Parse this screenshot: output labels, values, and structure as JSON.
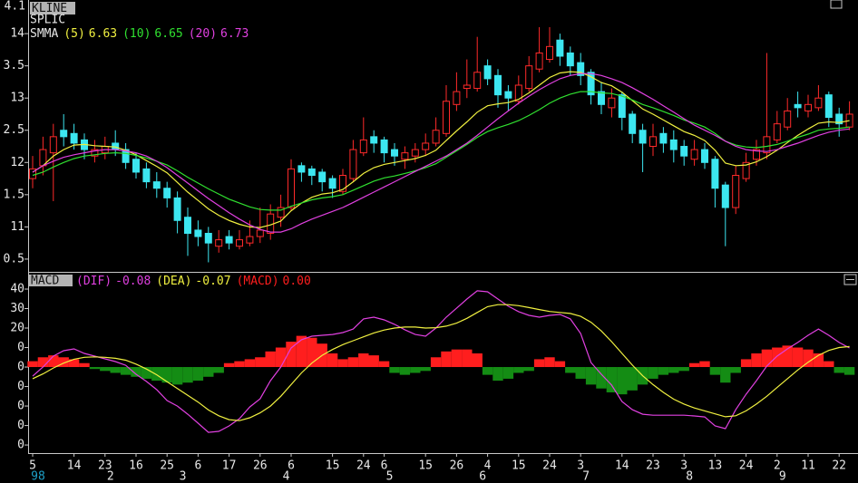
{
  "chart_data": [
    {
      "type": "candlestick",
      "badge": "KLINE",
      "title": "SPLIC",
      "top_label": "4.1",
      "open": [
        11.75,
        11.95,
        12.15,
        12.5,
        12.45,
        12.35,
        12.1,
        12.15,
        12.3,
        12.2,
        12.05,
        11.9,
        11.7,
        11.6,
        11.45,
        11.15,
        10.95,
        10.9,
        10.7,
        10.85,
        10.7,
        10.75,
        10.85,
        10.9,
        11.15,
        11.3,
        11.95,
        11.9,
        11.85,
        11.75,
        11.55,
        11.75,
        12.15,
        12.4,
        12.35,
        12.2,
        12.05,
        12.1,
        12.2,
        12.3,
        12.45,
        12.9,
        13.15,
        13.15,
        13.5,
        13.35,
        13.1,
        12.95,
        13.15,
        13.45,
        13.6,
        13.9,
        13.7,
        13.55,
        13.4,
        13.1,
        12.85,
        13.05,
        12.75,
        12.5,
        12.25,
        12.45,
        12.35,
        12.25,
        12.05,
        12.2,
        12.05,
        11.65,
        11.3,
        11.75,
        12.05,
        12.15,
        12.35,
        12.55,
        12.9,
        12.8,
        12.85,
        13.05,
        12.75,
        12.55
      ],
      "high": [
        12.1,
        12.4,
        12.6,
        12.75,
        12.6,
        12.45,
        12.35,
        12.4,
        12.5,
        12.3,
        12.15,
        12.0,
        11.85,
        11.7,
        11.55,
        11.3,
        11.1,
        11.0,
        10.95,
        10.95,
        10.95,
        11.1,
        11.3,
        11.35,
        11.5,
        12.05,
        12.0,
        11.95,
        11.9,
        11.8,
        11.9,
        12.35,
        12.7,
        12.5,
        12.4,
        12.3,
        12.25,
        12.3,
        12.45,
        12.7,
        13.2,
        13.4,
        13.6,
        13.95,
        13.6,
        13.45,
        13.2,
        13.35,
        13.65,
        14.1,
        14.1,
        14.0,
        13.8,
        13.7,
        13.45,
        13.25,
        13.15,
        13.1,
        12.8,
        12.6,
        12.6,
        12.55,
        12.5,
        12.35,
        12.35,
        12.3,
        12.1,
        11.7,
        11.95,
        12.15,
        12.35,
        13.7,
        12.8,
        13.0,
        13.1,
        13.05,
        13.2,
        13.1,
        12.85,
        12.95
      ],
      "low": [
        11.6,
        11.8,
        11.4,
        12.25,
        12.2,
        12.05,
        12.0,
        12.05,
        12.1,
        11.9,
        11.75,
        11.6,
        11.45,
        11.3,
        10.9,
        10.55,
        10.7,
        10.45,
        10.6,
        10.65,
        10.65,
        10.7,
        10.75,
        10.8,
        11.0,
        11.25,
        11.7,
        11.65,
        11.55,
        11.45,
        11.5,
        11.7,
        12.1,
        12.15,
        12.0,
        11.95,
        11.9,
        12.0,
        12.1,
        12.25,
        12.4,
        12.8,
        13.0,
        13.1,
        13.2,
        12.85,
        12.8,
        12.9,
        13.1,
        13.4,
        13.55,
        13.5,
        13.35,
        13.2,
        12.9,
        12.75,
        12.7,
        12.5,
        12.3,
        11.85,
        12.1,
        12.15,
        12.0,
        11.95,
        11.95,
        11.9,
        11.3,
        10.7,
        11.2,
        11.7,
        11.95,
        12.05,
        12.3,
        12.5,
        12.7,
        12.7,
        12.8,
        12.55,
        12.4,
        12.5
      ],
      "close": [
        11.9,
        12.2,
        12.4,
        12.4,
        12.3,
        12.2,
        12.2,
        12.25,
        12.2,
        12.0,
        11.85,
        11.7,
        11.6,
        11.45,
        11.1,
        10.9,
        10.85,
        10.75,
        10.8,
        10.75,
        10.8,
        10.85,
        10.95,
        11.2,
        11.3,
        11.9,
        11.85,
        11.8,
        11.7,
        11.6,
        11.8,
        12.2,
        12.35,
        12.3,
        12.15,
        12.1,
        12.15,
        12.2,
        12.3,
        12.5,
        12.95,
        13.1,
        13.2,
        13.4,
        13.3,
        13.05,
        13.0,
        13.2,
        13.5,
        13.7,
        13.8,
        13.65,
        13.5,
        13.35,
        13.05,
        12.9,
        13.0,
        12.7,
        12.45,
        12.3,
        12.4,
        12.3,
        12.2,
        12.1,
        12.2,
        12.0,
        11.6,
        11.3,
        11.8,
        12.0,
        12.2,
        12.4,
        12.6,
        12.8,
        12.85,
        12.9,
        13.0,
        12.7,
        12.6,
        12.75
      ],
      "up_color": "#ff2a2a",
      "down_color": "#3ce6f0",
      "overlay_name": "SMMA",
      "series": [
        {
          "name": "(5)",
          "value_label": "6.63",
          "color": "#f0f040",
          "values": [
            11.85,
            11.95,
            12.1,
            12.2,
            12.27,
            12.28,
            12.26,
            12.25,
            12.24,
            12.19,
            12.12,
            12.03,
            11.94,
            11.84,
            11.69,
            11.54,
            11.41,
            11.28,
            11.18,
            11.1,
            11.04,
            11.0,
            10.99,
            11.03,
            11.09,
            11.25,
            11.37,
            11.46,
            11.51,
            11.53,
            11.58,
            11.7,
            11.83,
            11.92,
            11.97,
            12.0,
            12.03,
            12.06,
            12.11,
            12.19,
            12.34,
            12.49,
            12.63,
            12.78,
            12.88,
            12.91,
            12.93,
            12.98,
            13.08,
            13.2,
            13.32,
            13.39,
            13.41,
            13.4,
            13.33,
            13.24,
            13.19,
            13.09,
            12.96,
            12.83,
            12.75,
            12.66,
            12.57,
            12.48,
            12.42,
            12.34,
            12.19,
            11.99,
            11.95,
            11.96,
            12.01,
            12.09,
            12.19,
            12.31,
            12.42,
            12.52,
            12.61,
            12.63,
            12.62,
            12.65
          ]
        },
        {
          "name": "(10)",
          "value_label": "6.65",
          "color": "#30e030",
          "values": [
            11.8,
            11.85,
            11.93,
            12.0,
            12.06,
            12.1,
            12.12,
            12.14,
            12.15,
            12.14,
            12.11,
            12.07,
            12.02,
            11.96,
            11.87,
            11.77,
            11.68,
            11.59,
            11.51,
            11.43,
            11.37,
            11.31,
            11.27,
            11.26,
            11.26,
            11.32,
            11.37,
            11.42,
            11.45,
            11.47,
            11.5,
            11.57,
            11.64,
            11.71,
            11.76,
            11.79,
            11.83,
            11.87,
            11.92,
            11.98,
            12.08,
            12.18,
            12.28,
            12.39,
            12.48,
            12.54,
            12.59,
            12.65,
            12.73,
            12.82,
            12.92,
            13.0,
            13.06,
            13.1,
            13.1,
            13.08,
            13.07,
            13.03,
            12.97,
            12.9,
            12.85,
            12.79,
            12.73,
            12.66,
            12.61,
            12.55,
            12.45,
            12.33,
            12.27,
            12.24,
            12.23,
            12.25,
            12.28,
            12.33,
            12.39,
            12.44,
            12.5,
            12.52,
            12.53,
            12.55
          ]
        },
        {
          "name": "(20)",
          "value_label": "6.73",
          "color": "#e040e0",
          "values": [
            11.85,
            11.95,
            12.02,
            12.08,
            12.12,
            12.15,
            12.18,
            12.2,
            12.2,
            12.18,
            12.15,
            12.1,
            12.02,
            11.92,
            11.8,
            11.68,
            11.56,
            11.44,
            11.33,
            11.22,
            11.12,
            11.03,
            10.96,
            10.92,
            10.92,
            10.97,
            11.05,
            11.12,
            11.18,
            11.24,
            11.3,
            11.38,
            11.46,
            11.54,
            11.62,
            11.7,
            11.78,
            11.86,
            11.94,
            12.02,
            12.1,
            12.2,
            12.3,
            12.42,
            12.55,
            12.68,
            12.8,
            12.92,
            13.03,
            13.13,
            13.22,
            13.3,
            13.35,
            13.38,
            13.38,
            13.35,
            13.3,
            13.24,
            13.16,
            13.07,
            12.98,
            12.88,
            12.78,
            12.68,
            12.58,
            12.5,
            12.42,
            12.33,
            12.25,
            12.2,
            12.18,
            12.17,
            12.2,
            12.25,
            12.3,
            12.36,
            12.42,
            12.47,
            12.5,
            12.52
          ]
        }
      ],
      "ylim": [
        10.33,
        14.48
      ],
      "yticks": [
        14,
        {
          "value": 13.5,
          "label": "3.5"
        },
        13,
        {
          "value": 12.5,
          "label": "2.5"
        },
        12,
        {
          "value": 11.5,
          "label": "1.5"
        },
        11,
        {
          "value": 10.5,
          "label": "0.5"
        }
      ]
    },
    {
      "type": "macd",
      "badge": "MACD",
      "series": [
        {
          "name": "(DIF)",
          "value_label": "-0.08",
          "color": "#e040e0",
          "values": [
            -4.7,
            0,
            5.6,
            8.4,
            9.3,
            7,
            5.6,
            4.2,
            2.8,
            0.9,
            -3.7,
            -7.4,
            -11.6,
            -17.2,
            -20,
            -24.2,
            -28.8,
            -33.5,
            -33,
            -30.2,
            -26.5,
            -20.5,
            -16.3,
            -7,
            0,
            9.8,
            14,
            15.8,
            16.3,
            16.7,
            17.7,
            19.5,
            24.7,
            25.6,
            24.2,
            21.9,
            19.1,
            16.7,
            15.8,
            20,
            25.6,
            30.2,
            34.9,
            39.1,
            38.6,
            34.9,
            31.2,
            28.4,
            26.5,
            25.6,
            26.5,
            27,
            24.7,
            17.2,
            2.3,
            -3.7,
            -9.3,
            -17.7,
            -21.9,
            -24.2,
            -24.7,
            -24.7,
            -24.7,
            -24.7,
            -25.1,
            -25.6,
            -30.2,
            -31.6,
            -21.9,
            -14,
            -7,
            0.5,
            5.6,
            9.3,
            12.6,
            16.3,
            19.5,
            16.3,
            12.6,
            9.8
          ]
        },
        {
          "name": "(DEA)",
          "value_label": "-0.07",
          "color": "#f0f040",
          "values": [
            -6,
            -3.5,
            -0.5,
            2,
            4,
            5,
            5.2,
            5,
            4.5,
            3.5,
            1.5,
            -1,
            -4,
            -7.5,
            -11,
            -14.5,
            -18,
            -22,
            -25,
            -27,
            -27.5,
            -26,
            -23.5,
            -20,
            -15,
            -9,
            -3,
            2,
            6,
            9,
            11.5,
            13.5,
            15.5,
            17.5,
            19,
            20,
            20.5,
            20.5,
            20,
            20.2,
            21,
            22.5,
            25,
            28,
            31,
            32,
            32,
            31.5,
            30.5,
            29.5,
            28.5,
            28,
            27.5,
            26,
            23,
            18.5,
            13,
            7,
            1,
            -4.5,
            -9,
            -13,
            -16.5,
            -19,
            -21,
            -22.5,
            -24,
            -25.5,
            -25,
            -22.5,
            -19,
            -15,
            -10.5,
            -6,
            -1.5,
            2.5,
            6,
            8.5,
            10,
            10.5
          ]
        }
      ],
      "histogram": {
        "name": "(MACD)",
        "value_label": "0.00",
        "up_color": "#ff1e1e",
        "down_color": "#148c14",
        "values": [
          3,
          5,
          6,
          5,
          4,
          2,
          -1,
          -2,
          -3,
          -4,
          -5,
          -6,
          -7,
          -8,
          -9,
          -8,
          -7,
          -5,
          -3,
          2,
          3,
          4,
          5,
          8,
          10,
          13,
          16,
          15,
          12,
          7,
          4,
          5,
          7,
          6,
          3,
          -3,
          -4,
          -3,
          -2,
          5,
          8,
          9,
          9,
          7,
          -4,
          -7,
          -6,
          -3,
          -2,
          4,
          5,
          3,
          -3,
          -6,
          -9,
          -11,
          -13,
          -14,
          -12,
          -9,
          -6,
          -4,
          -3,
          -2,
          2,
          3,
          -4,
          -8,
          -3,
          4,
          7,
          9,
          10,
          11,
          10,
          9,
          7,
          3,
          -3,
          -4
        ]
      },
      "ylim": [
        -48.8,
        47.9
      ],
      "yticks": [
        40,
        30,
        20,
        {
          "value": 10,
          "label": "0"
        },
        0,
        {
          "value": -10,
          "label": "0"
        },
        {
          "value": -20,
          "label": "0"
        },
        {
          "value": -30,
          "label": "0"
        },
        {
          "value": -40,
          "label": "0"
        }
      ],
      "categories": [
        "5",
        null,
        null,
        null,
        "14",
        null,
        null,
        "23",
        null,
        null,
        "16",
        null,
        null,
        "25",
        null,
        null,
        "6",
        null,
        null,
        "17",
        null,
        null,
        "26",
        null,
        null,
        "6",
        null,
        null,
        null,
        "15",
        null,
        null,
        "24",
        null,
        "6",
        null,
        null,
        null,
        "15",
        null,
        null,
        "26",
        null,
        null,
        "4",
        null,
        null,
        "15",
        null,
        null,
        "24",
        null,
        null,
        "3",
        null,
        null,
        null,
        "14",
        null,
        null,
        "23",
        null,
        null,
        "3",
        null,
        null,
        "13",
        null,
        null,
        "24",
        null,
        null,
        "2",
        null,
        null,
        "11",
        null,
        null,
        "22",
        null
      ],
      "months": [
        "98",
        null,
        null,
        null,
        null,
        null,
        null,
        "2",
        null,
        null,
        null,
        null,
        null,
        null,
        "3",
        null,
        null,
        null,
        null,
        null,
        null,
        null,
        null,
        null,
        "4",
        null,
        null,
        null,
        null,
        null,
        null,
        null,
        null,
        null,
        "5",
        null,
        null,
        null,
        null,
        null,
        null,
        null,
        null,
        "6",
        null,
        null,
        null,
        null,
        null,
        null,
        null,
        null,
        null,
        "7",
        null,
        null,
        null,
        null,
        null,
        null,
        null,
        null,
        null,
        "8",
        null,
        null,
        null,
        null,
        null,
        null,
        null,
        null,
        "9",
        null,
        null,
        null,
        null,
        null,
        null,
        null
      ],
      "year_color": "#1ea0c8"
    }
  ]
}
